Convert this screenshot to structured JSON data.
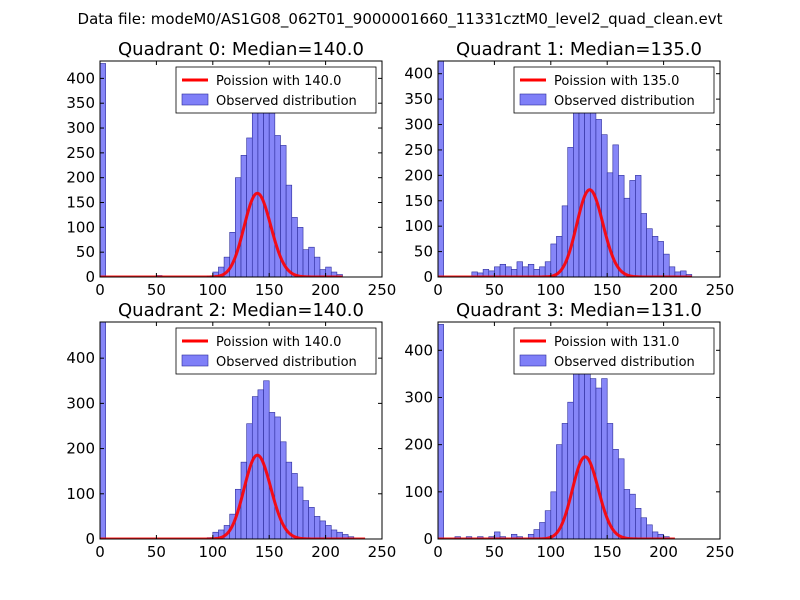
{
  "suptitle": "Data file: modeM0/AS1G08_062T01_9000001660_11331cztM0_level2_quad_clean.evt",
  "colors": {
    "bar_fill": "#7f7ff8",
    "bar_edge": "#2b2b9a",
    "poisson_line": "#ff0000",
    "axes": "#000000"
  },
  "chart_data": [
    {
      "type": "bar",
      "title": "Quadrant 0: Median=140.0",
      "xlim": [
        0,
        250
      ],
      "ylim": [
        0,
        435
      ],
      "xticks": [
        "0",
        "50",
        "100",
        "150",
        "200",
        "250"
      ],
      "xtick_values": [
        0,
        50,
        100,
        150,
        200,
        250
      ],
      "yticks": [
        "0",
        "50",
        "100",
        "150",
        "200",
        "250",
        "300",
        "350",
        "400"
      ],
      "ytick_values": [
        0,
        50,
        100,
        150,
        200,
        250,
        300,
        350,
        400
      ],
      "bin_width": 5,
      "series": [
        {
          "name": "Observed distribution",
          "type": "histogram",
          "bins": [
            0,
            50,
            95,
            100,
            105,
            110,
            115,
            120,
            125,
            130,
            135,
            140,
            145,
            150,
            155,
            160,
            165,
            170,
            175,
            180,
            185,
            190,
            195,
            200,
            205,
            210
          ],
          "values": [
            430,
            3,
            2,
            10,
            20,
            40,
            90,
            200,
            245,
            280,
            350,
            370,
            330,
            330,
            285,
            265,
            185,
            120,
            100,
            55,
            60,
            40,
            15,
            20,
            10,
            5
          ]
        },
        {
          "name": "Poission with 140.0",
          "type": "line",
          "mu": 140.0,
          "scale": 5000,
          "x_range": [
            0,
            215
          ]
        }
      ],
      "legend": [
        "Poission with 140.0",
        "Observed distribution"
      ],
      "legend_position": "top-right"
    },
    {
      "type": "bar",
      "title": "Quadrant 1: Median=135.0",
      "xlim": [
        0,
        250
      ],
      "ylim": [
        0,
        425
      ],
      "xticks": [
        "0",
        "50",
        "100",
        "150",
        "200",
        "250"
      ],
      "xtick_values": [
        0,
        50,
        100,
        150,
        200,
        250
      ],
      "yticks": [
        "0",
        "50",
        "100",
        "150",
        "200",
        "250",
        "300",
        "350",
        "400"
      ],
      "ytick_values": [
        0,
        50,
        100,
        150,
        200,
        250,
        300,
        350,
        400
      ],
      "bin_width": 5,
      "series": [
        {
          "name": "Observed distribution",
          "type": "histogram",
          "bins": [
            0,
            30,
            35,
            40,
            45,
            50,
            55,
            60,
            65,
            70,
            75,
            80,
            85,
            90,
            95,
            100,
            105,
            110,
            115,
            120,
            125,
            130,
            135,
            140,
            145,
            150,
            155,
            160,
            165,
            170,
            175,
            180,
            185,
            190,
            195,
            200,
            205,
            210,
            215,
            220
          ],
          "values": [
            425,
            10,
            8,
            15,
            12,
            20,
            25,
            20,
            15,
            30,
            20,
            25,
            15,
            20,
            30,
            65,
            80,
            140,
            255,
            325,
            375,
            380,
            340,
            310,
            280,
            205,
            260,
            200,
            155,
            190,
            200,
            125,
            95,
            80,
            70,
            45,
            20,
            10,
            12,
            5
          ]
        },
        {
          "name": "Poission with 135.0",
          "type": "line",
          "mu": 135.0,
          "scale": 5000,
          "x_range": [
            0,
            225
          ]
        }
      ],
      "legend": [
        "Poission with 135.0",
        "Observed distribution"
      ],
      "legend_position": "top-right"
    },
    {
      "type": "bar",
      "title": "Quadrant 2: Median=140.0",
      "xlim": [
        0,
        250
      ],
      "ylim": [
        0,
        480
      ],
      "xticks": [
        "0",
        "50",
        "100",
        "150",
        "200",
        "250"
      ],
      "xtick_values": [
        0,
        50,
        100,
        150,
        200,
        250
      ],
      "yticks": [
        "0",
        "100",
        "200",
        "300",
        "400"
      ],
      "ytick_values": [
        0,
        100,
        200,
        300,
        400
      ],
      "bin_width": 5,
      "series": [
        {
          "name": "Observed distribution",
          "type": "histogram",
          "bins": [
            0,
            95,
            100,
            105,
            110,
            115,
            120,
            125,
            130,
            135,
            140,
            145,
            150,
            155,
            160,
            165,
            170,
            175,
            180,
            185,
            190,
            195,
            200,
            205,
            210,
            215,
            220
          ],
          "values": [
            480,
            3,
            15,
            20,
            30,
            55,
            110,
            170,
            255,
            315,
            330,
            350,
            280,
            270,
            215,
            170,
            145,
            115,
            85,
            70,
            50,
            40,
            30,
            20,
            15,
            10,
            5
          ]
        },
        {
          "name": "Poission with 140.0",
          "type": "line",
          "mu": 140.0,
          "scale": 5500,
          "x_range": [
            0,
            235
          ]
        }
      ],
      "legend": [
        "Poission with 140.0",
        "Observed distribution"
      ],
      "legend_position": "top-right"
    },
    {
      "type": "bar",
      "title": "Quadrant 3: Median=131.0",
      "xlim": [
        0,
        250
      ],
      "ylim": [
        0,
        460
      ],
      "xticks": [
        "0",
        "50",
        "100",
        "150",
        "200",
        "250"
      ],
      "xtick_values": [
        0,
        50,
        100,
        150,
        200,
        250
      ],
      "yticks": [
        "0",
        "100",
        "200",
        "300",
        "400"
      ],
      "ytick_values": [
        0,
        100,
        200,
        300,
        400
      ],
      "bin_width": 5,
      "series": [
        {
          "name": "Observed distribution",
          "type": "histogram",
          "bins": [
            0,
            15,
            25,
            35,
            45,
            50,
            55,
            65,
            70,
            80,
            85,
            90,
            95,
            100,
            105,
            110,
            115,
            120,
            125,
            130,
            135,
            140,
            145,
            150,
            155,
            160,
            165,
            170,
            175,
            180,
            185,
            190,
            195,
            200
          ],
          "values": [
            455,
            5,
            5,
            5,
            5,
            15,
            5,
            10,
            5,
            10,
            20,
            35,
            60,
            100,
            200,
            245,
            290,
            445,
            360,
            440,
            340,
            320,
            340,
            245,
            190,
            170,
            105,
            95,
            65,
            45,
            30,
            15,
            10,
            5
          ]
        },
        {
          "name": "Poission with 131.0",
          "type": "line",
          "mu": 131.0,
          "scale": 5000,
          "x_range": [
            0,
            210
          ]
        }
      ],
      "legend": [
        "Poission with 131.0",
        "Observed distribution"
      ],
      "legend_position": "top-right"
    }
  ]
}
